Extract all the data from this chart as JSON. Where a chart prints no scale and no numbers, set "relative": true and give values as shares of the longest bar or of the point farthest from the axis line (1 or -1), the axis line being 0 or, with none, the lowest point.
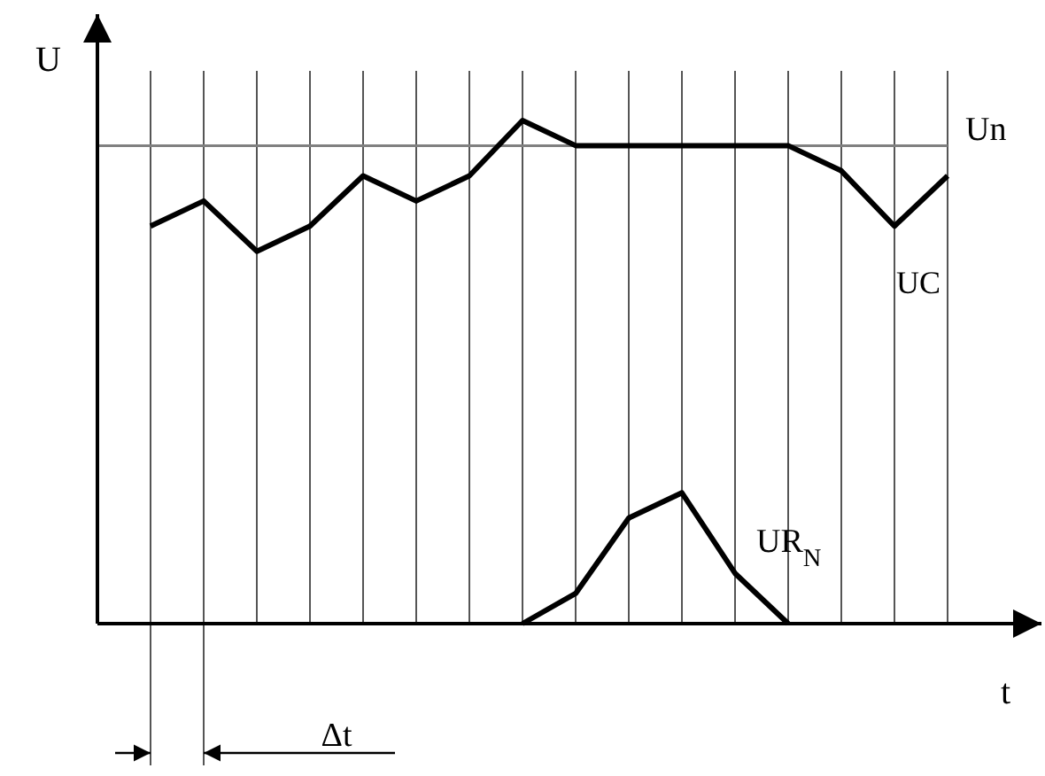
{
  "chart_data": {
    "type": "line",
    "relative": true,
    "xlabel": "t",
    "ylabel": "U",
    "categories": [
      null,
      null,
      null,
      null,
      null,
      null,
      null,
      null,
      null,
      null,
      null,
      null,
      null,
      null,
      null,
      null
    ],
    "series": [
      {
        "name": "UC",
        "color": "#000000",
        "values": [
          0.79,
          0.84,
          0.74,
          0.79,
          0.89,
          0.84,
          0.89,
          1,
          0.95,
          0.95,
          0.95,
          0.95,
          0.95,
          0.9,
          0.79,
          0.89
        ]
      },
      {
        "name": "UR$_{N}$",
        "color": "#000000",
        "values": [
          null,
          null,
          null,
          null,
          null,
          null,
          null,
          0,
          0.06,
          0.21,
          0.26,
          0.1,
          0,
          null,
          null,
          null
        ]
      }
    ],
    "ref_lines": [
      {
        "axis": "y",
        "value": 0.95,
        "label": "Un",
        "color": "#808080"
      }
    ],
    "annotations": [
      "Δt"
    ],
    "grid": "x",
    "marker": "none",
    "line_style": "solid"
  }
}
